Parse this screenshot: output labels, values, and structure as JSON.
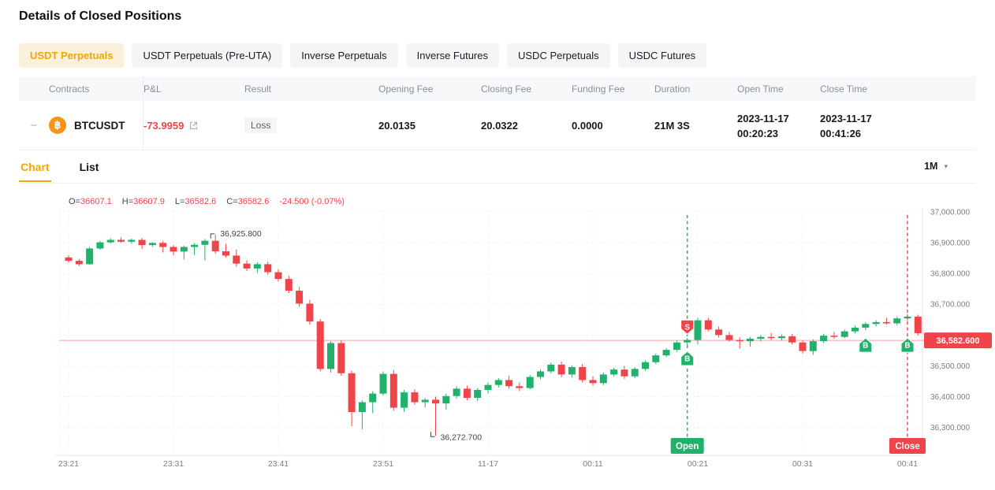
{
  "page": {
    "title": "Details of Closed Positions"
  },
  "filter_tabs": [
    {
      "label": "USDT Perpetuals",
      "active": true
    },
    {
      "label": "USDT Perpetuals (Pre-UTA)",
      "active": false
    },
    {
      "label": "Inverse Perpetuals",
      "active": false
    },
    {
      "label": "Inverse Futures",
      "active": false
    },
    {
      "label": "USDC Perpetuals",
      "active": false
    },
    {
      "label": "USDC Futures",
      "active": false
    }
  ],
  "icons": {
    "expand_collapse": "−",
    "btc": "฿",
    "dropdown_caret": "▾",
    "external_link": "external-link"
  },
  "table": {
    "columns": [
      "Contracts",
      "P&L",
      "Result",
      "Opening Fee",
      "Closing Fee",
      "Funding Fee",
      "Duration",
      "Open Time",
      "Close Time"
    ],
    "row": {
      "contract": "BTCUSDT",
      "pnl": "-73.9959",
      "result": "Loss",
      "opening_fee": "20.0135",
      "closing_fee": "20.0322",
      "funding_fee": "0.0000",
      "duration": "21M 3S",
      "open_time": {
        "date": "2023-11-17",
        "time": "00:20:23"
      },
      "close_time": {
        "date": "2023-11-17",
        "time": "00:41:26"
      }
    }
  },
  "view_tabs": {
    "chart": "Chart",
    "list": "List",
    "interval": "1M"
  },
  "chart_data": {
    "type": "candlestick",
    "interval": "1m",
    "ohlc_info": {
      "items": [
        {
          "label": "O=",
          "value": "36607.1"
        },
        {
          "label": "H=",
          "value": "36607.9"
        },
        {
          "label": "L=",
          "value": "36582.6"
        },
        {
          "label": "C=",
          "value": "36582.6"
        }
      ],
      "change": "-24.500 (-0.07%)"
    },
    "ylim": [
      36230,
      37010
    ],
    "y_ticks": [
      {
        "value": 37000,
        "label": "37,000.000"
      },
      {
        "value": 36900,
        "label": "36,900.000"
      },
      {
        "value": 36800,
        "label": "36,800.000"
      },
      {
        "value": 36700,
        "label": "36,700.000"
      },
      {
        "value": 36600,
        "label": "36,600.000"
      },
      {
        "value": 36500,
        "label": "36,500.000"
      },
      {
        "value": 36400,
        "label": "36,400.000"
      },
      {
        "value": 36300,
        "label": "36,300.000"
      }
    ],
    "x_ticks": [
      {
        "index": 0,
        "label": "23:21"
      },
      {
        "index": 10,
        "label": "23:31"
      },
      {
        "index": 20,
        "label": "23:41"
      },
      {
        "index": 30,
        "label": "23:51"
      },
      {
        "index": 40,
        "label": "11-17"
      },
      {
        "index": 50,
        "label": "00:11"
      },
      {
        "index": 60,
        "label": "00:21"
      },
      {
        "index": 70,
        "label": "00:31"
      },
      {
        "index": 80,
        "label": "00:41"
      }
    ],
    "current_price": 36582.6,
    "current_price_label": "36,582.600",
    "high_annotation": {
      "candle_index": 14,
      "price": 36925.8,
      "label": "36,925.800"
    },
    "low_annotation": {
      "candle_index": 35,
      "price": 36272.7,
      "label": "36,272.700"
    },
    "open_marker": {
      "candle_index": 59,
      "label": "Open"
    },
    "close_marker": {
      "candle_index": 80,
      "label": "Close"
    },
    "trade_badges": [
      {
        "candle_index": 59,
        "label": "S",
        "position": "above"
      },
      {
        "candle_index": 59,
        "label": "B",
        "position": "below"
      },
      {
        "candle_index": 76,
        "label": "B",
        "position": "on_price_line"
      },
      {
        "candle_index": 80,
        "label": "B",
        "position": "on_price_line"
      }
    ],
    "candles": [
      [
        36852,
        36858,
        36836,
        36841
      ],
      [
        36841,
        36847,
        36824,
        36830
      ],
      [
        36830,
        36886,
        36828,
        36881
      ],
      [
        36881,
        36906,
        36877,
        36901
      ],
      [
        36901,
        36914,
        36897,
        36909
      ],
      [
        36909,
        36917,
        36899,
        36903
      ],
      [
        36903,
        36913,
        36897,
        36909
      ],
      [
        36909,
        36915,
        36879,
        36892
      ],
      [
        36892,
        36902,
        36886,
        36899
      ],
      [
        36899,
        36905,
        36868,
        36886
      ],
      [
        36886,
        36892,
        36858,
        36871
      ],
      [
        36871,
        36891,
        36845,
        36886
      ],
      [
        36886,
        36898,
        36860,
        36893
      ],
      [
        36893,
        36912,
        36842,
        36906
      ],
      [
        36906,
        36925.8,
        36864,
        36872
      ],
      [
        36872,
        36896,
        36852,
        36858
      ],
      [
        36858,
        36878,
        36822,
        36832
      ],
      [
        36832,
        36843,
        36808,
        36816
      ],
      [
        36816,
        36836,
        36802,
        36830
      ],
      [
        36830,
        36838,
        36796,
        36804
      ],
      [
        36804,
        36814,
        36774,
        36782
      ],
      [
        36782,
        36792,
        36736,
        36744
      ],
      [
        36744,
        36756,
        36692,
        36702
      ],
      [
        36702,
        36714,
        36634,
        36644
      ],
      [
        36644,
        36652,
        36482,
        36490
      ],
      [
        36490,
        36580,
        36478,
        36574
      ],
      [
        36574,
        36582,
        36468,
        36476
      ],
      [
        36476,
        36484,
        36304,
        36350
      ],
      [
        36350,
        36388,
        36294,
        36382
      ],
      [
        36382,
        36418,
        36346,
        36410
      ],
      [
        36410,
        36482,
        36404,
        36474
      ],
      [
        36474,
        36486,
        36354,
        36364
      ],
      [
        36364,
        36422,
        36350,
        36414
      ],
      [
        36414,
        36424,
        36374,
        36382
      ],
      [
        36382,
        36396,
        36366,
        36390
      ],
      [
        36390,
        36400,
        36272.7,
        36378
      ],
      [
        36378,
        36410,
        36358,
        36402
      ],
      [
        36402,
        36434,
        36394,
        36426
      ],
      [
        36426,
        36436,
        36388,
        36396
      ],
      [
        36396,
        36428,
        36386,
        36422
      ],
      [
        36422,
        36446,
        36410,
        36438
      ],
      [
        36438,
        36460,
        36430,
        36454
      ],
      [
        36454,
        36468,
        36426,
        36434
      ],
      [
        36434,
        36446,
        36418,
        36428
      ],
      [
        36428,
        36470,
        36424,
        36464
      ],
      [
        36464,
        36488,
        36456,
        36482
      ],
      [
        36482,
        36510,
        36476,
        36504
      ],
      [
        36504,
        36514,
        36464,
        36472
      ],
      [
        36472,
        36502,
        36462,
        36496
      ],
      [
        36496,
        36506,
        36446,
        36454
      ],
      [
        36454,
        36466,
        36436,
        36444
      ],
      [
        36444,
        36478,
        36438,
        36472
      ],
      [
        36472,
        36494,
        36466,
        36488
      ],
      [
        36488,
        36500,
        36458,
        36466
      ],
      [
        36466,
        36496,
        36460,
        36490
      ],
      [
        36490,
        36518,
        36484,
        36512
      ],
      [
        36512,
        36540,
        36506,
        36534
      ],
      [
        36534,
        36558,
        36528,
        36552
      ],
      [
        36552,
        36582,
        36546,
        36576
      ],
      [
        36576,
        36590,
        36560,
        36584
      ],
      [
        36584,
        36656,
        36570,
        36648
      ],
      [
        36648,
        36656,
        36612,
        36618
      ],
      [
        36618,
        36628,
        36592,
        36600
      ],
      [
        36600,
        36610,
        36578,
        36584
      ],
      [
        36584,
        36592,
        36556,
        36580
      ],
      [
        36580,
        36594,
        36562,
        36588
      ],
      [
        36588,
        36600,
        36580,
        36594
      ],
      [
        36594,
        36606,
        36584,
        36590
      ],
      [
        36590,
        36602,
        36582,
        36596
      ],
      [
        36596,
        36604,
        36570,
        36576
      ],
      [
        36576,
        36582,
        36540,
        36548
      ],
      [
        36548,
        36586,
        36536,
        36580
      ],
      [
        36580,
        36604,
        36574,
        36598
      ],
      [
        36598,
        36610,
        36588,
        36594
      ],
      [
        36594,
        36618,
        36590,
        36612
      ],
      [
        36612,
        36630,
        36606,
        36624
      ],
      [
        36624,
        36642,
        36616,
        36636
      ],
      [
        36636,
        36648,
        36628,
        36642
      ],
      [
        36642,
        36656,
        36634,
        36638
      ],
      [
        36638,
        36660,
        36632,
        36654
      ],
      [
        36654,
        36668,
        36646,
        36660
      ],
      [
        36660,
        36666,
        36598,
        36606
      ],
      [
        36607.1,
        36607.9,
        36582.6,
        36582.6
      ]
    ],
    "colors": {
      "up": "#20B26C",
      "down": "#EF454A",
      "accent": "#F7A600",
      "price_line": "#F4A0A4",
      "grid": "#E9EBEE",
      "axis_label": "#7A7E87",
      "annotation": "#3F434A"
    }
  }
}
